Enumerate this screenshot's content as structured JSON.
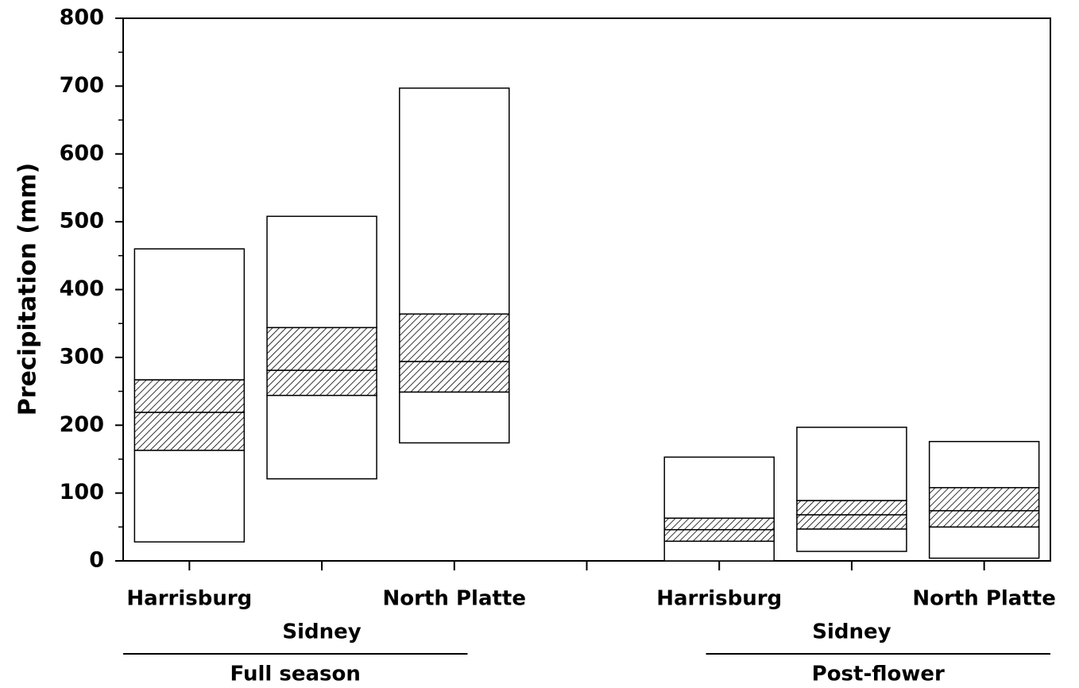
{
  "chart_data": {
    "type": "box",
    "y_label": "Precipitation (mm)",
    "ylim": [
      0,
      800
    ],
    "yticks": [
      0,
      100,
      200,
      300,
      400,
      500,
      600,
      700,
      800
    ],
    "yminorticks": [
      50,
      150,
      250,
      350,
      450,
      550,
      650,
      750
    ],
    "groups": [
      {
        "name": "Full season",
        "categories": [
          "Harrisburg",
          "Sidney",
          "North Platte"
        ],
        "min": [
          28,
          121,
          174
        ],
        "q1": [
          163,
          244,
          249
        ],
        "median": [
          219,
          281,
          294
        ],
        "q3": [
          267,
          344,
          364
        ],
        "max": [
          460,
          508,
          697
        ]
      },
      {
        "name": "Post-flower",
        "categories": [
          "Harrisburg",
          "Sidney",
          "North Platte"
        ],
        "min": [
          0,
          14,
          4
        ],
        "q1": [
          29,
          47,
          50
        ],
        "median": [
          46,
          68,
          74
        ],
        "q3": [
          63,
          89,
          108
        ],
        "max": [
          153,
          197,
          176
        ]
      }
    ]
  }
}
